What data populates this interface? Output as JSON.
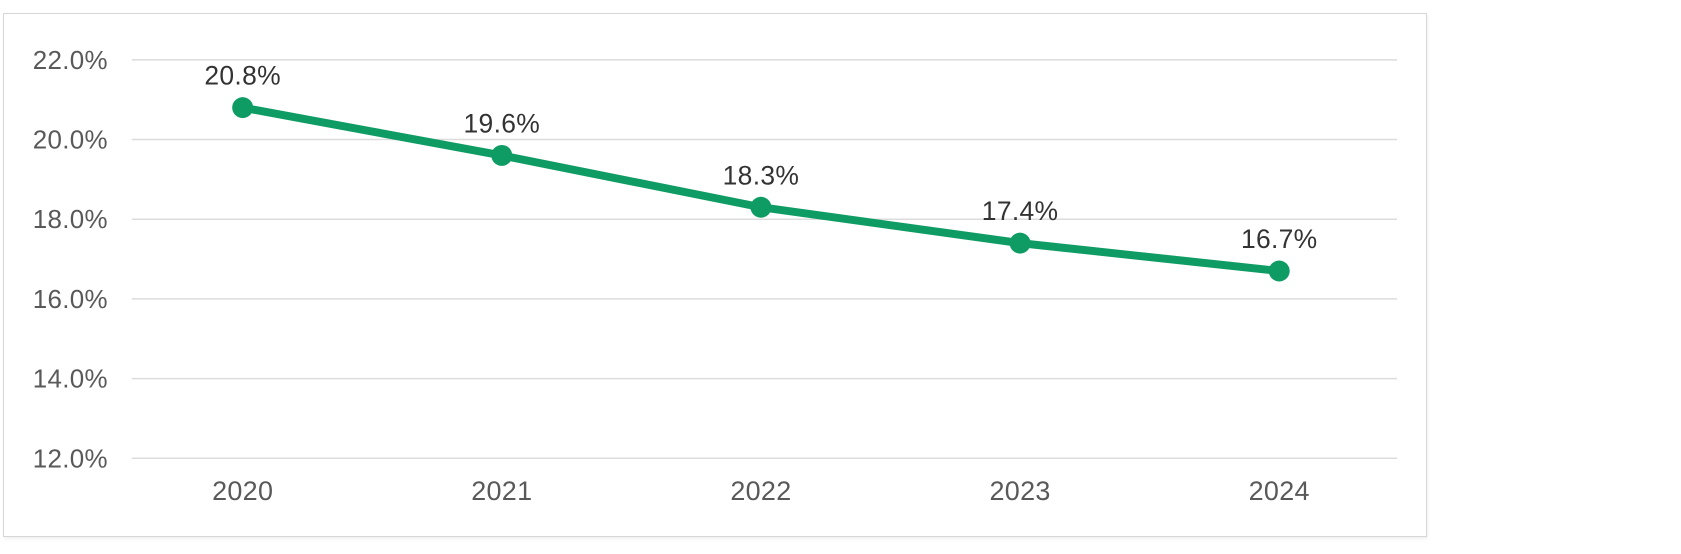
{
  "chart_data": {
    "type": "line",
    "title": "",
    "categories": [
      "2020",
      "2021",
      "2022",
      "2023",
      "2024"
    ],
    "series": [
      {
        "name": "",
        "values": [
          20.8,
          19.6,
          18.3,
          17.4,
          16.7
        ],
        "data_labels": [
          "20.8%",
          "19.6%",
          "18.3%",
          "17.4%",
          "16.7%"
        ],
        "marker": "circle"
      }
    ],
    "xlabel": "",
    "ylabel": "",
    "ylim": [
      12,
      22
    ],
    "y_ticks": [
      {
        "value": 22,
        "label": "22.0%"
      },
      {
        "value": 20,
        "label": "20.0%"
      },
      {
        "value": 18,
        "label": "18.0%"
      },
      {
        "value": 16,
        "label": "16.0%"
      },
      {
        "value": 14,
        "label": "14.0%"
      },
      {
        "value": 12,
        "label": "12.0%"
      }
    ],
    "grid": true,
    "legend": "none",
    "colors": {
      "line": "#0f9c64",
      "marker": "#0f9c64",
      "gridline": "#dcdcdc",
      "axis_label": "#595959",
      "data_label": "#333333",
      "card_border": "#d7d7d7",
      "background": "#ffffff"
    }
  }
}
